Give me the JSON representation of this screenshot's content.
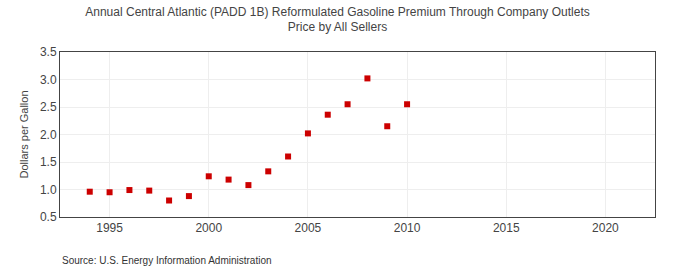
{
  "chart_data": {
    "type": "scatter",
    "title": "Annual Central Atlantic (PADD 1B) Reformulated Gasoline Premium Through Company Outlets\nPrice by All Sellers",
    "ylabel": "Dollars per Gallon",
    "annotations": [
      "Source: U.S. Energy Information Administration"
    ],
    "x": [
      1994,
      1995,
      1996,
      1997,
      1998,
      1999,
      2000,
      2001,
      2002,
      2003,
      2004,
      2005,
      2006,
      2007,
      2008,
      2009,
      2010
    ],
    "values": [
      0.96,
      0.95,
      0.99,
      0.98,
      0.8,
      0.88,
      1.24,
      1.18,
      1.08,
      1.33,
      1.6,
      2.02,
      2.36,
      2.55,
      3.02,
      2.15,
      2.55
    ],
    "color": "#cc0000",
    "marker": "square",
    "xlim": [
      1992.5,
      2022.5
    ],
    "xticks": [
      1995,
      2000,
      2005,
      2010,
      2015,
      2020
    ],
    "ylim": [
      0.5,
      3.5
    ],
    "yticks": [
      0.5,
      {
        "value": 1.0,
        "label": "1.0"
      },
      1.5,
      {
        "value": 2.0,
        "label": "2.0"
      },
      2.5,
      {
        "value": 3.0,
        "label": "3.0"
      },
      3.5
    ],
    "grid": true
  }
}
